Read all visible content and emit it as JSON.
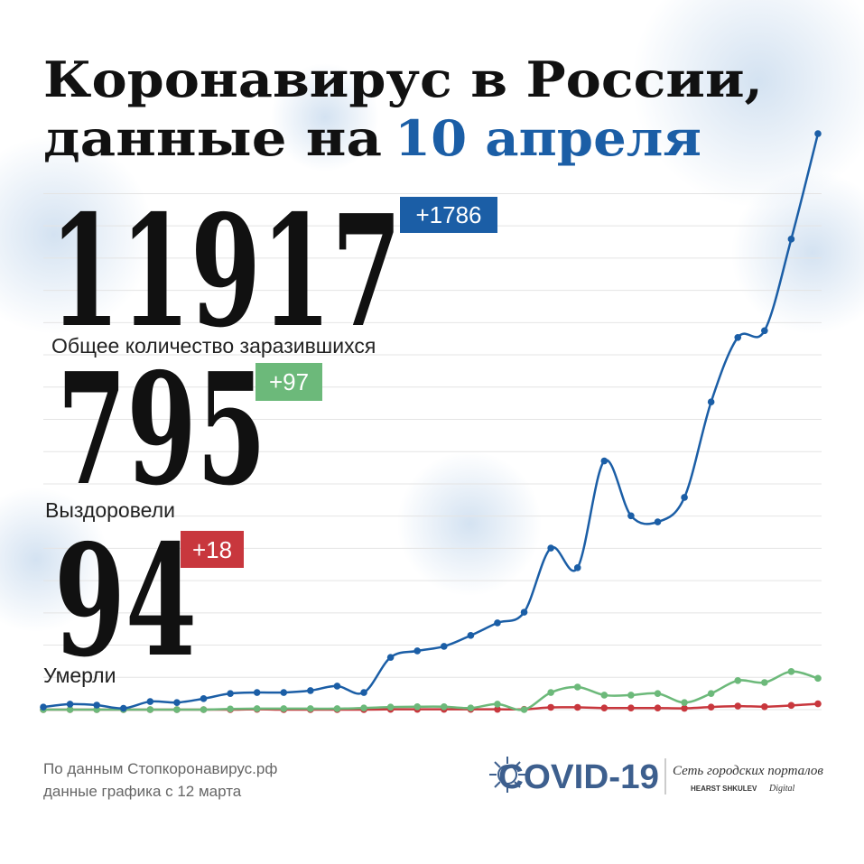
{
  "title_line1": "Коронавирус в России,",
  "title_line2": "данные на",
  "title_date": "10 апреля",
  "stats": [
    {
      "value": "11917",
      "delta": "+1786",
      "label": "Общее количество заразившихся"
    },
    {
      "value": "795",
      "delta": "+97",
      "label": "Выздоровели"
    },
    {
      "value": "94",
      "delta": "+18",
      "label": "Умерли"
    }
  ],
  "footer": [
    "По данным Стопкоронавирус.рф",
    "данные графика с 12 марта"
  ],
  "logo": {
    "name": "COVID-19",
    "network": "Сеть городских порталов",
    "brand": "HEARST SHKULEV",
    "brand_suffix": "Digital"
  },
  "chart_data": {
    "type": "line",
    "categories": [
      null,
      null,
      null,
      null,
      null,
      null,
      null,
      null,
      null,
      null,
      null,
      null,
      null,
      null,
      null,
      null,
      null,
      null,
      null,
      null,
      null,
      null,
      null,
      null,
      null,
      null,
      null,
      null,
      null,
      null
    ],
    "ylim": [
      0,
      1800
    ],
    "yticks": [
      0,
      100,
      200,
      300,
      400,
      500,
      600,
      700,
      800,
      900,
      1000,
      1100,
      1200,
      1300,
      1400,
      1500,
      1600
    ],
    "grid": true,
    "series": [
      {
        "color": "#1b5ea6",
        "values": [
          8,
          17,
          14,
          4,
          25,
          22,
          34,
          50,
          53,
          53,
          59,
          73,
          53,
          162,
          182,
          196,
          230,
          269,
          302,
          501,
          440,
          771,
          601,
          582,
          658,
          954,
          1154,
          1175,
          1459,
          1786
        ]
      },
      {
        "color": "#6cb97a",
        "values": [
          0,
          0,
          0,
          0,
          0,
          0,
          0,
          2,
          3,
          3,
          3,
          3,
          5,
          8,
          9,
          9,
          5,
          17,
          0,
          53,
          70,
          45,
          45,
          50,
          22,
          50,
          90,
          84,
          118,
          97
        ]
      },
      {
        "color": "#c8373d",
        "values": [
          0,
          0,
          0,
          0,
          0,
          0,
          0,
          0,
          1,
          0,
          0,
          0,
          0,
          1,
          1,
          1,
          1,
          1,
          1,
          7,
          7,
          5,
          5,
          5,
          4,
          8,
          11,
          9,
          13,
          18
        ]
      }
    ]
  }
}
